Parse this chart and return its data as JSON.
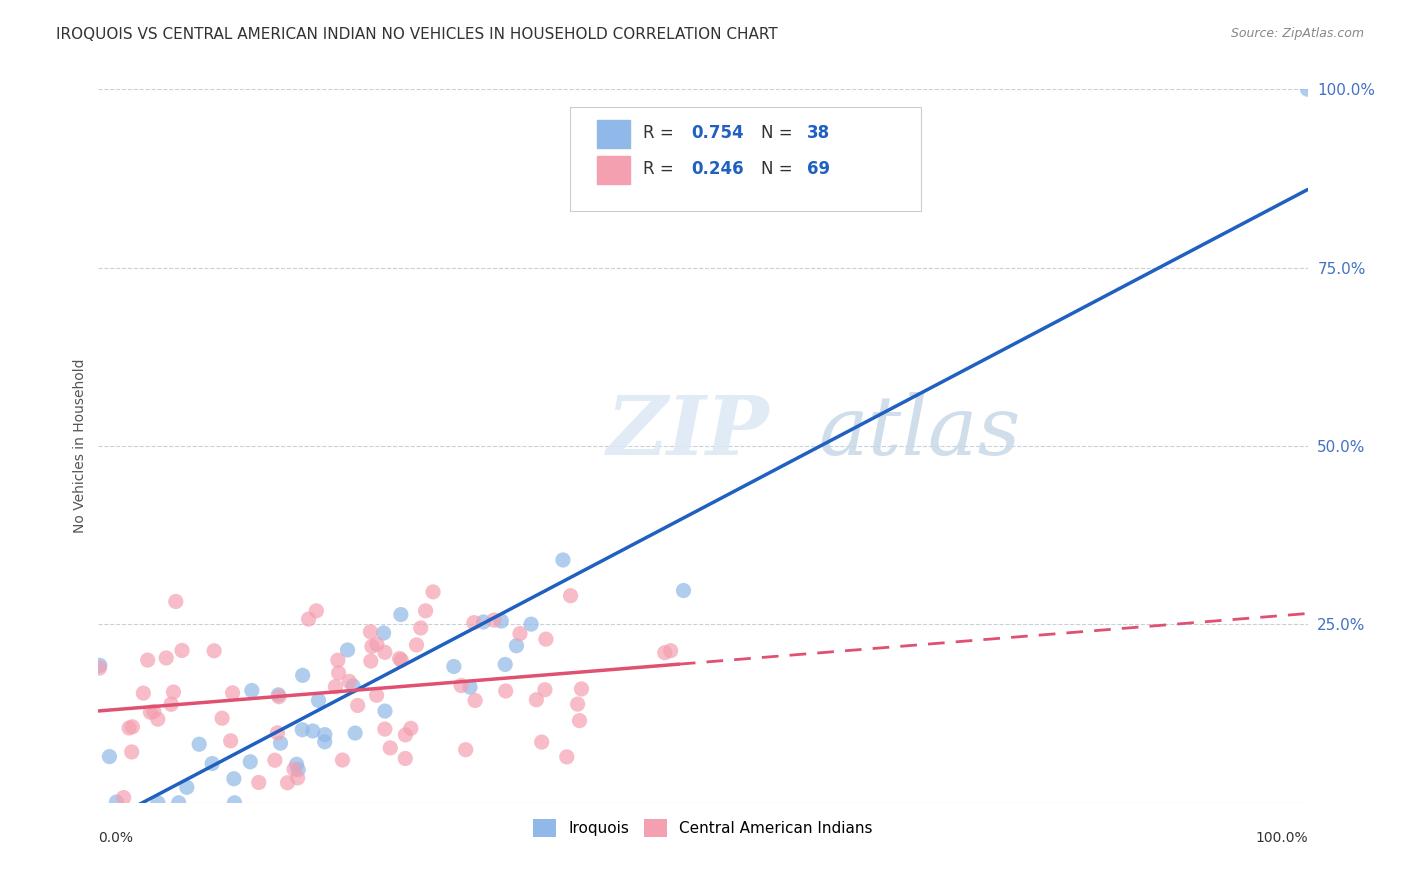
{
  "title": "IROQUOIS VS CENTRAL AMERICAN INDIAN NO VEHICLES IN HOUSEHOLD CORRELATION CHART",
  "source": "Source: ZipAtlas.com",
  "ylabel": "No Vehicles in Household",
  "legend_r1": "R = 0.754",
  "legend_n1": "N = 38",
  "legend_r2": "R = 0.246",
  "legend_n2": "N = 69",
  "iroquois_color": "#90b8e8",
  "cam_color": "#f4a0b0",
  "iroquois_line_color": "#2060c0",
  "cam_line_color": "#e05070",
  "watermark_zip": "ZIP",
  "watermark_atlas": "atlas",
  "background_color": "#ffffff",
  "grid_color": "#c8d0d8",
  "title_fontsize": 11,
  "right_tick_color": "#4472c4"
}
